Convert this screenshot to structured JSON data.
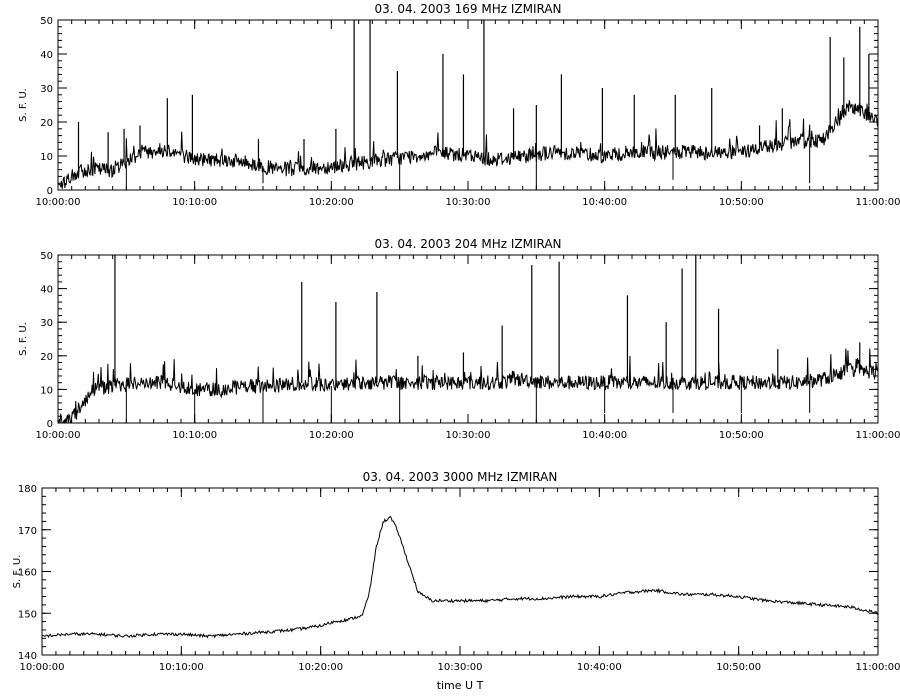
{
  "chart_data": [
    {
      "type": "line",
      "title": "03. 04. 2003   169 MHz   IZMIRAN",
      "ylabel": "S. F. U.",
      "xlabel": "",
      "xlim": [
        "10:00:00",
        "11:00:00"
      ],
      "ylim": [
        0,
        50
      ],
      "x_ticks": [
        "10:00:00",
        "10:10:00",
        "10:20:00",
        "10:30:00",
        "10:40:00",
        "10:50:00",
        "11:00:00"
      ],
      "y_ticks": [
        0,
        10,
        20,
        30,
        40,
        50
      ],
      "grid": false,
      "series": [
        {
          "x": [
            "10:00:00",
            "10:01:00",
            "10:02:00",
            "10:04:00",
            "10:06:00",
            "10:08:00",
            "10:10:00",
            "10:12:00",
            "10:14:00",
            "10:16:00",
            "10:18:00",
            "10:20:00",
            "10:22:00",
            "10:24:00",
            "10:26:00",
            "10:28:00",
            "10:30:00",
            "10:32:00",
            "10:34:00",
            "10:36:00",
            "10:38:00",
            "10:40:00",
            "10:42:00",
            "10:44:00",
            "10:46:00",
            "10:48:00",
            "10:50:00",
            "10:52:00",
            "10:54:00",
            "10:56:00",
            "10:58:00",
            "11:00:00"
          ],
          "values": [
            1,
            4,
            6,
            6,
            11,
            12,
            9,
            9,
            8,
            6,
            6,
            7,
            8,
            9,
            10,
            11,
            10,
            9,
            10,
            11,
            11,
            10,
            11,
            11,
            11,
            11,
            11,
            13,
            14,
            15,
            25,
            20
          ]
        }
      ],
      "spikes": [
        {
          "x": "10:01:30",
          "y": 20
        },
        {
          "x": "10:03:40",
          "y": 17
        },
        {
          "x": "10:04:50",
          "y": 18
        },
        {
          "x": "10:06:00",
          "y": 19
        },
        {
          "x": "10:08:00",
          "y": 27
        },
        {
          "x": "10:09:50",
          "y": 28
        },
        {
          "x": "10:14:40",
          "y": 15
        },
        {
          "x": "10:18:00",
          "y": 15
        },
        {
          "x": "10:20:20",
          "y": 18
        },
        {
          "x": "10:21:40",
          "y": 50
        },
        {
          "x": "10:22:50",
          "y": 50
        },
        {
          "x": "10:24:50",
          "y": 35
        },
        {
          "x": "10:28:10",
          "y": 40
        },
        {
          "x": "10:29:40",
          "y": 34
        },
        {
          "x": "10:31:10",
          "y": 50
        },
        {
          "x": "10:33:20",
          "y": 24
        },
        {
          "x": "10:35:00",
          "y": 25
        },
        {
          "x": "10:36:50",
          "y": 34
        },
        {
          "x": "10:39:50",
          "y": 30
        },
        {
          "x": "10:42:10",
          "y": 28
        },
        {
          "x": "10:45:10",
          "y": 28
        },
        {
          "x": "10:47:50",
          "y": 30
        },
        {
          "x": "10:51:20",
          "y": 19
        },
        {
          "x": "10:53:00",
          "y": 24
        },
        {
          "x": "10:56:30",
          "y": 45
        },
        {
          "x": "10:57:30",
          "y": 39
        },
        {
          "x": "10:58:40",
          "y": 48
        },
        {
          "x": "10:59:20",
          "y": 40
        }
      ],
      "dips": [
        {
          "x": "10:05:00",
          "y": 0
        },
        {
          "x": "10:15:00",
          "y": 2
        },
        {
          "x": "10:25:00",
          "y": 0
        },
        {
          "x": "10:35:00",
          "y": 0
        },
        {
          "x": "10:45:00",
          "y": 3
        },
        {
          "x": "10:55:00",
          "y": 2
        }
      ]
    },
    {
      "type": "line",
      "title": "03. 04. 2003   204 MHz   IZMIRAN",
      "ylabel": "S. F. U.",
      "xlabel": "",
      "xlim": [
        "10:00:00",
        "11:00:00"
      ],
      "ylim": [
        0,
        50
      ],
      "x_ticks": [
        "10:00:00",
        "10:10:00",
        "10:20:00",
        "10:30:00",
        "10:40:00",
        "10:50:00",
        "11:00:00"
      ],
      "y_ticks": [
        0,
        10,
        20,
        30,
        40,
        50
      ],
      "grid": false,
      "series": [
        {
          "x": [
            "10:00:00",
            "10:01:00",
            "10:01:40",
            "10:02:30",
            "10:04:00",
            "10:06:00",
            "10:08:00",
            "10:10:00",
            "10:12:00",
            "10:14:00",
            "10:16:00",
            "10:18:00",
            "10:20:00",
            "10:22:00",
            "10:24:00",
            "10:26:00",
            "10:28:00",
            "10:30:00",
            "10:32:00",
            "10:34:00",
            "10:36:00",
            "10:38:00",
            "10:40:00",
            "10:42:00",
            "10:44:00",
            "10:46:00",
            "10:48:00",
            "10:50:00",
            "10:52:00",
            "10:54:00",
            "10:56:00",
            "10:58:00",
            "11:00:00"
          ],
          "values": [
            1,
            1,
            5,
            10,
            11,
            12,
            12,
            10,
            10,
            11,
            11,
            12,
            11,
            12,
            12,
            12,
            12,
            12,
            12,
            13,
            12,
            12,
            12,
            12,
            12,
            12,
            12,
            12,
            12,
            12,
            13,
            16,
            15
          ]
        }
      ],
      "spikes": [
        {
          "x": "10:04:10",
          "y": 50
        },
        {
          "x": "10:17:50",
          "y": 42
        },
        {
          "x": "10:20:20",
          "y": 36
        },
        {
          "x": "10:23:20",
          "y": 39
        },
        {
          "x": "10:26:20",
          "y": 20
        },
        {
          "x": "10:29:40",
          "y": 21
        },
        {
          "x": "10:32:30",
          "y": 29
        },
        {
          "x": "10:34:40",
          "y": 47
        },
        {
          "x": "10:36:40",
          "y": 48
        },
        {
          "x": "10:41:40",
          "y": 38
        },
        {
          "x": "10:44:30",
          "y": 30
        },
        {
          "x": "10:45:40",
          "y": 46
        },
        {
          "x": "10:46:40",
          "y": 50
        },
        {
          "x": "10:48:20",
          "y": 34
        },
        {
          "x": "10:52:40",
          "y": 22
        },
        {
          "x": "10:58:40",
          "y": 24
        }
      ],
      "dips": [
        {
          "x": "10:05:00",
          "y": 0
        },
        {
          "x": "10:10:00",
          "y": 0
        },
        {
          "x": "10:15:00",
          "y": 0
        },
        {
          "x": "10:20:00",
          "y": 0
        },
        {
          "x": "10:25:00",
          "y": 0
        },
        {
          "x": "10:35:00",
          "y": 0
        },
        {
          "x": "10:40:00",
          "y": 3
        },
        {
          "x": "10:45:00",
          "y": 3
        },
        {
          "x": "10:50:00",
          "y": 3
        },
        {
          "x": "10:55:00",
          "y": 3
        }
      ]
    },
    {
      "type": "line",
      "title": "03. 04. 2003   3000 MHz   IZMIRAN",
      "ylabel": "S. F. U.",
      "xlabel": "time  U T",
      "xlim": [
        "10:00:00",
        "11:00:00"
      ],
      "ylim": [
        140,
        180
      ],
      "x_ticks": [
        "10:00:00",
        "10:10:00",
        "10:20:00",
        "10:30:00",
        "10:40:00",
        "10:50:00",
        "11:00:00"
      ],
      "y_ticks": [
        140,
        150,
        160,
        170,
        180
      ],
      "grid": false,
      "series": [
        {
          "x": [
            "10:00:00",
            "10:02:00",
            "10:04:00",
            "10:06:00",
            "10:08:00",
            "10:10:00",
            "10:12:00",
            "10:14:00",
            "10:16:00",
            "10:18:00",
            "10:20:00",
            "10:21:00",
            "10:22:00",
            "10:23:00",
            "10:23:30",
            "10:24:00",
            "10:24:30",
            "10:25:00",
            "10:25:30",
            "10:26:00",
            "10:26:30",
            "10:27:00",
            "10:28:00",
            "10:30:00",
            "10:32:00",
            "10:34:00",
            "10:36:00",
            "10:38:00",
            "10:40:00",
            "10:42:00",
            "10:44:00",
            "10:46:00",
            "10:48:00",
            "10:50:00",
            "10:52:00",
            "10:54:00",
            "10:56:00",
            "10:58:00",
            "11:00:00"
          ],
          "values": [
            144.5,
            145,
            145,
            144.5,
            145,
            145,
            144.5,
            145,
            145.5,
            146,
            147,
            148,
            148.5,
            149.5,
            155,
            166,
            172,
            173,
            170,
            165,
            160,
            155,
            153,
            153,
            153,
            153.5,
            153.5,
            154,
            154,
            155,
            155.5,
            154.5,
            154.5,
            154,
            153,
            152.5,
            152,
            151.5,
            150
          ]
        }
      ]
    }
  ]
}
